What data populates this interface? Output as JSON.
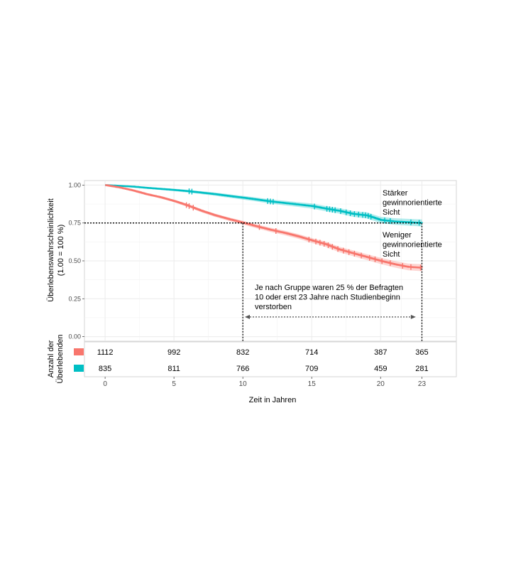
{
  "chart_data": {
    "type": "line",
    "subtype": "kaplan-meier",
    "title": "",
    "xlabel": "Zeit in Jahren",
    "ylabel": "Überlebenswahrscheinlichkeit",
    "ylabel_sub": "(1.00 = 100 %)",
    "xlim": [
      -1.5,
      25.5
    ],
    "ylim": [
      -0.03,
      1.03
    ],
    "x_ticks": [
      0,
      5,
      10,
      15,
      20,
      23
    ],
    "y_ticks": [
      0.0,
      0.25,
      0.5,
      0.75,
      1.0
    ],
    "y_tick_labels": [
      "0.00",
      "0.25",
      "0.50",
      "0.75",
      "1.00"
    ],
    "grid": true,
    "colors": {
      "red": "#F8766D",
      "teal": "#00BFC4"
    },
    "series": [
      {
        "label": "Stärker gewinnorientierte Sicht",
        "color": "#00BFC4",
        "x": [
          0,
          1,
          2,
          3,
          4,
          5,
          6,
          7,
          8,
          9,
          10,
          11,
          12,
          13,
          14,
          15,
          16,
          17,
          18,
          19,
          20,
          21,
          22,
          23
        ],
        "y": [
          1.0,
          0.995,
          0.99,
          0.982,
          0.975,
          0.968,
          0.96,
          0.95,
          0.94,
          0.928,
          0.917,
          0.905,
          0.892,
          0.882,
          0.872,
          0.862,
          0.845,
          0.83,
          0.81,
          0.8,
          0.77,
          0.76,
          0.755,
          0.75
        ],
        "band_width": 0.02,
        "censor_x": [
          6.1,
          6.3,
          11.8,
          12.0,
          12.2,
          15.2,
          16.1,
          16.3,
          16.5,
          16.7,
          17.1,
          17.5,
          17.8,
          18.1,
          18.4,
          18.7,
          18.9,
          19.1,
          19.3,
          20.3,
          20.7,
          22.2,
          22.8
        ]
      },
      {
        "label": "Weniger gewinnorientierte Sicht",
        "color": "#F8766D",
        "x": [
          0,
          1,
          2,
          3,
          4,
          5,
          6,
          7,
          8,
          9,
          10,
          11,
          12,
          13,
          14,
          15,
          16,
          17,
          18,
          19,
          20,
          21,
          22,
          23
        ],
        "y": [
          1.0,
          0.985,
          0.965,
          0.94,
          0.92,
          0.895,
          0.865,
          0.83,
          0.8,
          0.775,
          0.752,
          0.728,
          0.705,
          0.685,
          0.662,
          0.635,
          0.61,
          0.575,
          0.55,
          0.525,
          0.5,
          0.478,
          0.46,
          0.455
        ],
        "band_width": 0.02,
        "censor_x": [
          5.9,
          6.1,
          6.4,
          11.2,
          12.4,
          14.8,
          15.3,
          15.6,
          15.9,
          16.2,
          16.5,
          16.9,
          17.3,
          17.7,
          18.1,
          18.6,
          19.2,
          19.6,
          20.1,
          20.7,
          21.6,
          22.2,
          22.9
        ]
      }
    ],
    "reference": {
      "y": 0.75,
      "x_marks": [
        10,
        23
      ]
    },
    "annotations": [
      {
        "lines": [
          "Stärker",
          "gewinnorientierte",
          "Sicht"
        ]
      },
      {
        "lines": [
          "Weniger",
          "gewinnorientierte",
          "Sicht"
        ]
      },
      {
        "lines": [
          "Je nach Gruppe waren 25 % der Befragten",
          "10 oder erst 23 Jahre nach Studienbeginn",
          "verstorben"
        ],
        "arrow_x": [
          10.3,
          22.4
        ],
        "arrow_y": 0.13
      }
    ],
    "risk_table": {
      "label_lines": [
        "Anzahl der",
        "Überlebenden"
      ],
      "times": [
        0,
        5,
        10,
        15,
        20,
        23
      ],
      "rows": [
        {
          "color": "#F8766D",
          "values": [
            "1112",
            "992",
            "832",
            "714",
            "387",
            "365"
          ]
        },
        {
          "color": "#00BFC4",
          "values": [
            "835",
            "811",
            "766",
            "709",
            "459",
            "281"
          ]
        }
      ]
    }
  }
}
